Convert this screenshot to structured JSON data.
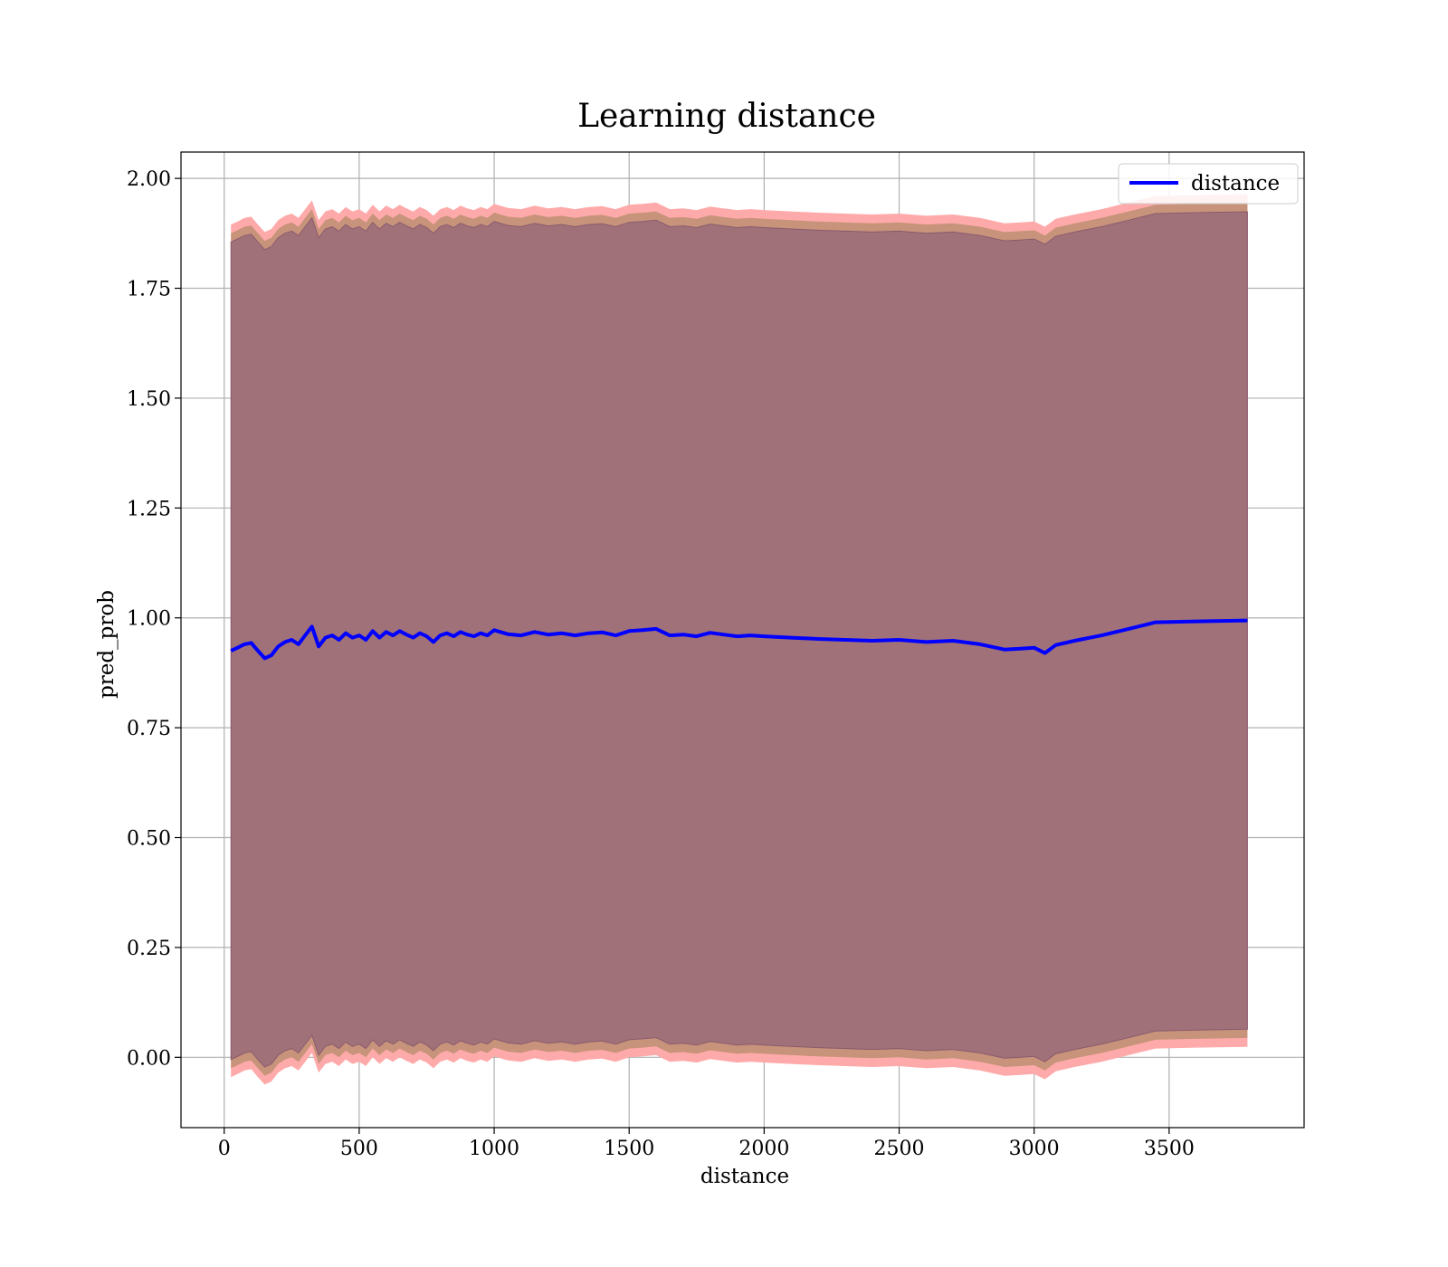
{
  "chart_data": {
    "type": "line",
    "title": "Learning distance",
    "xlabel": "distance",
    "ylabel": "pred_prob",
    "xlim": [
      -160,
      4000
    ],
    "ylim": [
      -0.16,
      2.06
    ],
    "xticks": [
      0,
      500,
      1000,
      1500,
      2000,
      2500,
      3000,
      3500
    ],
    "yticks": [
      0.0,
      0.25,
      0.5,
      0.75,
      1.0,
      1.25,
      1.5,
      1.75,
      2.0
    ],
    "xtick_labels": [
      "0",
      "500",
      "1000",
      "1500",
      "2000",
      "2500",
      "3000",
      "3500"
    ],
    "ytick_labels": [
      "0.00",
      "0.25",
      "0.50",
      "0.75",
      "1.00",
      "1.25",
      "1.50",
      "1.75",
      "2.00"
    ],
    "grid": true,
    "legend": {
      "position": "top-right",
      "entries": [
        "distance"
      ]
    },
    "colors": {
      "line": "#0000ff",
      "outer_band": "#ffaaaa",
      "middle_band": "#c7937a",
      "inner_band": "#a17179",
      "inner_band_edge": "#8a5a6e"
    },
    "series": [
      {
        "name": "distance",
        "x": [
          25,
          50,
          75,
          100,
          125,
          150,
          175,
          200,
          225,
          250,
          275,
          300,
          325,
          350,
          375,
          400,
          425,
          450,
          475,
          500,
          525,
          550,
          575,
          600,
          625,
          650,
          675,
          700,
          725,
          750,
          775,
          800,
          825,
          850,
          875,
          900,
          925,
          950,
          975,
          1000,
          1050,
          1100,
          1150,
          1200,
          1250,
          1300,
          1350,
          1400,
          1450,
          1500,
          1550,
          1600,
          1650,
          1700,
          1750,
          1800,
          1850,
          1900,
          1950,
          2000,
          2100,
          2200,
          2300,
          2400,
          2500,
          2600,
          2700,
          2800,
          2890,
          2950,
          3000,
          3040,
          3080,
          3150,
          3250,
          3350,
          3450,
          3600,
          3790
        ],
        "y": [
          0.925,
          0.932,
          0.94,
          0.943,
          0.925,
          0.908,
          0.915,
          0.935,
          0.945,
          0.95,
          0.94,
          0.96,
          0.98,
          0.935,
          0.955,
          0.96,
          0.95,
          0.965,
          0.955,
          0.96,
          0.95,
          0.97,
          0.955,
          0.968,
          0.96,
          0.97,
          0.962,
          0.955,
          0.965,
          0.958,
          0.945,
          0.96,
          0.965,
          0.958,
          0.968,
          0.962,
          0.958,
          0.965,
          0.96,
          0.972,
          0.963,
          0.96,
          0.968,
          0.962,
          0.965,
          0.96,
          0.965,
          0.967,
          0.96,
          0.97,
          0.972,
          0.975,
          0.96,
          0.962,
          0.958,
          0.966,
          0.962,
          0.958,
          0.96,
          0.958,
          0.955,
          0.952,
          0.95,
          0.948,
          0.95,
          0.945,
          0.948,
          0.94,
          0.928,
          0.93,
          0.932,
          0.92,
          0.938,
          0.948,
          0.96,
          0.975,
          0.99,
          0.992,
          0.994
        ]
      }
    ],
    "bands": {
      "outer_offset": 0.97,
      "middle_offset": 0.95,
      "inner_offset": 0.93
    }
  }
}
